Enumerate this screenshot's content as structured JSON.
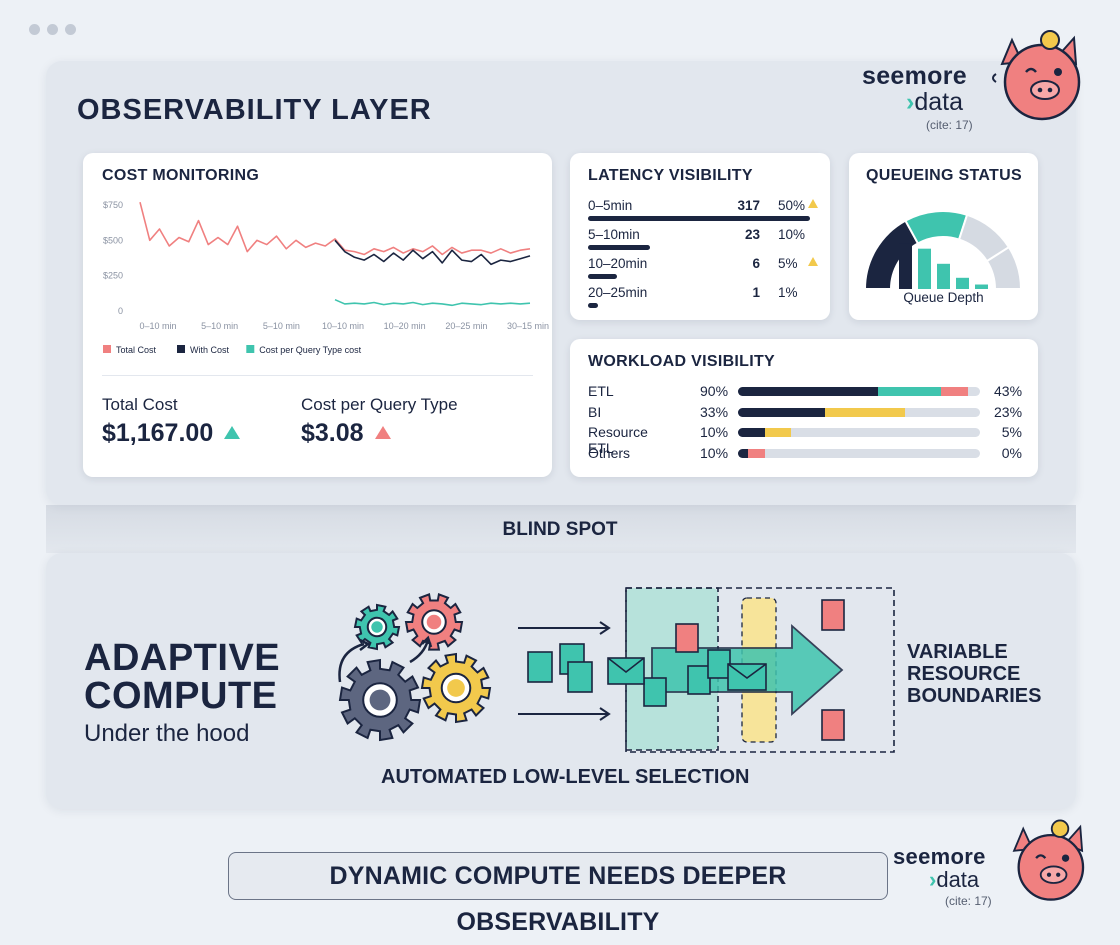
{
  "window": {
    "controls": [
      "dot",
      "dot",
      "dot"
    ]
  },
  "brand": {
    "line1": "seemore",
    "chevron": "›",
    "line2": "data",
    "cite": "(cite: 17)",
    "mascot_icon": "pig-mascot-icon"
  },
  "observability": {
    "title": "OBSERVABILITY LAYER",
    "cost_monitoring": {
      "title": "COST MONITORING",
      "total_cost_label": "Total Cost",
      "total_cost_value": "$1,167.00",
      "cost_per_query_label": "Cost per Query Type",
      "cost_per_query_value": "$3.08",
      "total_trend_color": "#3fc4ae",
      "query_trend_color": "#f08080"
    },
    "latency": {
      "title": "LATENCY VISIBILITY",
      "rows": [
        {
          "label": "0–5min",
          "count": "317",
          "pct": "50%",
          "warn": true,
          "fill": 1.0
        },
        {
          "label": "5–10min",
          "count": "23",
          "pct": "10%",
          "warn": false,
          "fill": 0.28
        },
        {
          "label": "10–20min",
          "count": "6",
          "pct": "5%",
          "warn": true,
          "fill": 0.13
        },
        {
          "label": "20–25min",
          "count": "1",
          "pct": "1%",
          "warn": false,
          "fill": 0.04
        }
      ]
    },
    "queueing": {
      "title": "QUEUEING STATUS",
      "caption": "Queue Depth",
      "bar_levels": [
        0.82,
        0.72,
        0.45,
        0.2,
        0.08
      ]
    },
    "workload": {
      "title": "WORKLOAD VISIBILITY",
      "rows": [
        {
          "label": "ETL",
          "pct_left": "90%",
          "pct_right": "43%",
          "segments": [
            {
              "from": 0,
              "to": 0.58,
              "color": "#1b2540"
            },
            {
              "from": 0.58,
              "to": 0.84,
              "color": "#3fc4ae"
            },
            {
              "from": 0.84,
              "to": 0.95,
              "color": "#f08080"
            }
          ]
        },
        {
          "label": "BI",
          "pct_left": "33%",
          "pct_right": "23%",
          "segments": [
            {
              "from": 0,
              "to": 0.36,
              "color": "#1b2540"
            },
            {
              "from": 0.36,
              "to": 0.69,
              "color": "#f2c94c"
            }
          ]
        },
        {
          "label": "Resource ETL",
          "pct_left": "10%",
          "pct_right": "5%",
          "segments": [
            {
              "from": 0,
              "to": 0.11,
              "color": "#1b2540"
            },
            {
              "from": 0.11,
              "to": 0.22,
              "color": "#f2c94c"
            }
          ]
        },
        {
          "label": "Others",
          "pct_left": "10%",
          "pct_right": "0%",
          "segments": [
            {
              "from": 0,
              "to": 0.04,
              "color": "#1b2540"
            },
            {
              "from": 0.04,
              "to": 0.11,
              "color": "#f08080"
            }
          ]
        }
      ]
    }
  },
  "chart_data": {
    "type": "line",
    "title": "COST MONITORING",
    "x_tick_labels": [
      "0–10 min",
      "5–10 min",
      "5–10 min",
      "10–10 min",
      "10–20 min",
      "20–25 min",
      "30–15 min"
    ],
    "y_tick_labels": [
      "$750",
      "$500",
      "$250",
      "0"
    ],
    "ylim": [
      0,
      750
    ],
    "legend": "bottom-left",
    "grid": false,
    "series": [
      {
        "name": "Total Cost",
        "color": "#f08080",
        "x": [
          0,
          0.5,
          1,
          1.5,
          2,
          2.5,
          3,
          3.5,
          4,
          4.5,
          5,
          5.5,
          6,
          6.5,
          7,
          7.5,
          8,
          8.5,
          9,
          9.5,
          10,
          10.5,
          11,
          11.5,
          12,
          12.5,
          13,
          13.5,
          14,
          14.5,
          15,
          15.5,
          16,
          16.5,
          17,
          17.5,
          18,
          18.5,
          19,
          19.5,
          20
        ],
        "values": [
          770,
          500,
          580,
          460,
          520,
          490,
          640,
          470,
          520,
          470,
          600,
          420,
          500,
          470,
          530,
          440,
          500,
          450,
          480,
          460,
          510,
          430,
          420,
          400,
          440,
          420,
          450,
          410,
          440,
          420,
          460,
          400,
          450,
          410,
          430,
          430,
          410,
          440,
          410,
          430,
          440
        ]
      },
      {
        "name": "With Cost",
        "color": "#1b2540",
        "x": [
          10,
          10.5,
          11,
          11.5,
          12,
          12.5,
          13,
          13.5,
          14,
          14.5,
          15,
          15.5,
          16,
          16.5,
          17,
          17.5,
          18,
          18.5,
          19,
          19.5,
          20
        ],
        "values": [
          500,
          420,
          380,
          360,
          400,
          350,
          410,
          360,
          430,
          370,
          420,
          340,
          430,
          360,
          350,
          400,
          330,
          360,
          350,
          370,
          390
        ]
      },
      {
        "name": "Cost per Query Type cost",
        "color": "#3fc4ae",
        "x": [
          10,
          10.5,
          11,
          11.5,
          12,
          12.5,
          13,
          13.5,
          14,
          14.5,
          15,
          15.5,
          16,
          16.5,
          17,
          17.5,
          18,
          18.5,
          19,
          19.5,
          20
        ],
        "values": [
          80,
          50,
          55,
          50,
          60,
          45,
          55,
          50,
          60,
          45,
          55,
          50,
          40,
          55,
          50,
          45,
          55,
          50,
          55,
          50,
          55
        ]
      }
    ]
  },
  "blind_spot": {
    "label": "BLIND SPOT"
  },
  "adaptive": {
    "title_line1": "ADAPTIVE",
    "title_line2": "COMPUTE",
    "subtitle": "Under the hood",
    "caption": "AUTOMATED LOW-LEVEL SELECTION",
    "side_label_1": "VARIABLE",
    "side_label_2": "RESOURCE",
    "side_label_3": "BOUNDARIES",
    "icons": [
      "gears-icon",
      "document-icon",
      "envelope-icon",
      "arrow-right-icon"
    ]
  },
  "banner": {
    "text": "DYNAMIC COMPUTE NEEDS DEEPER OBSERVABILITY"
  },
  "colors": {
    "navy": "#1b2540",
    "teal": "#3fc4ae",
    "coral": "#f08080",
    "yellow": "#f2c94c",
    "slate": "#c9cfd8"
  }
}
